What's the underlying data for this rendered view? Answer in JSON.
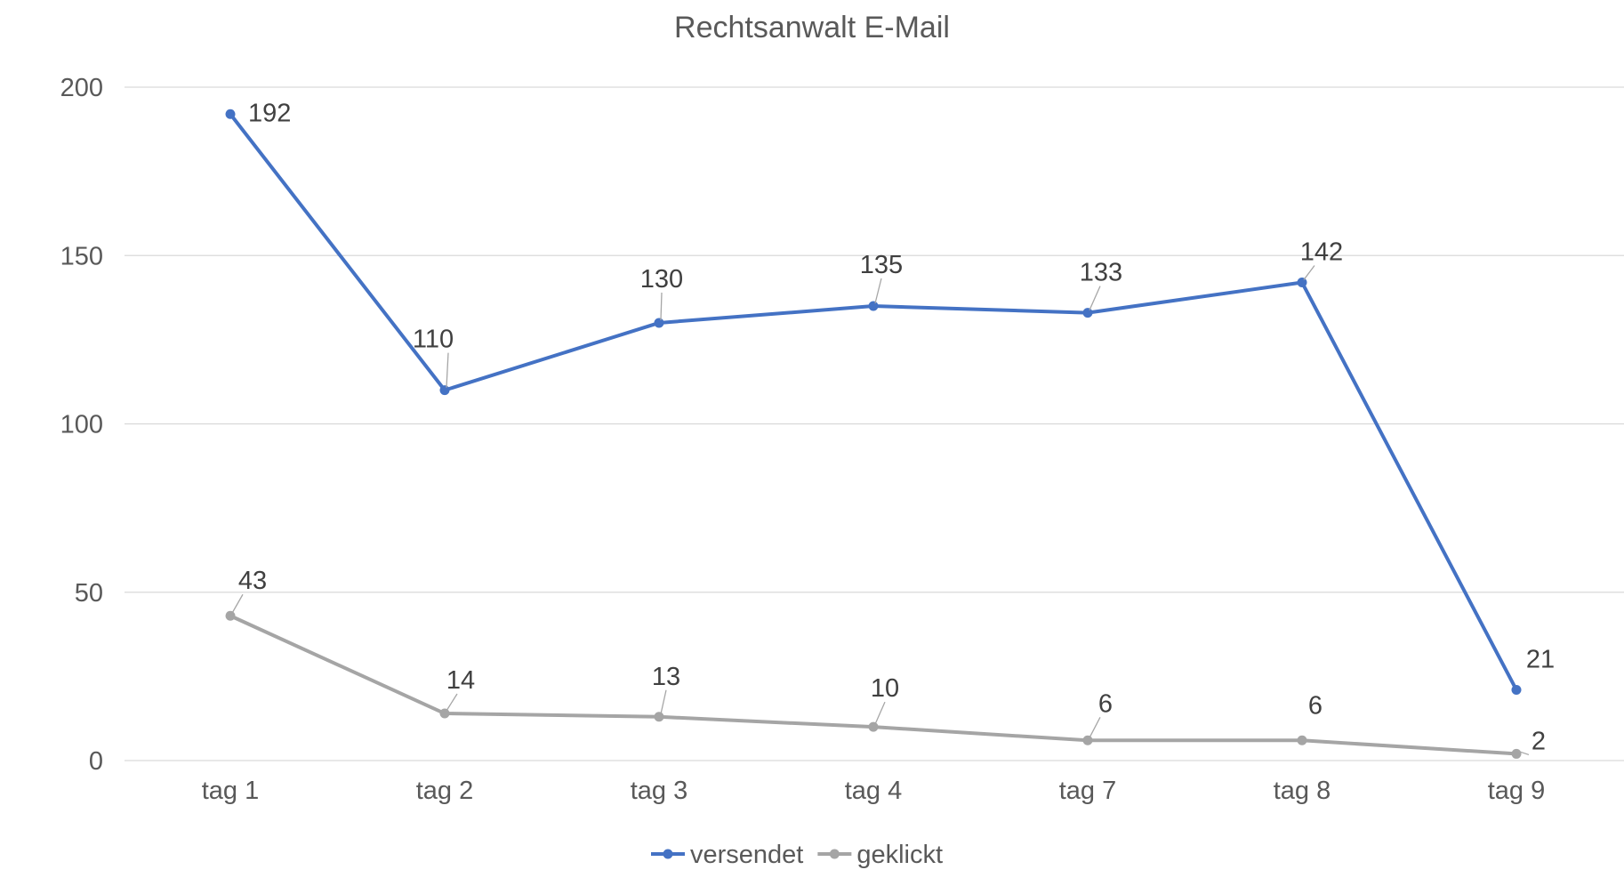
{
  "chart_data": {
    "type": "line",
    "title": "Rechtsanwalt E-Mail",
    "xlabel": "",
    "ylabel": "",
    "categories": [
      "tag 1",
      "tag 2",
      "tag 3",
      "tag 4",
      "tag 7",
      "tag 8",
      "tag 9"
    ],
    "ylim": [
      0,
      200
    ],
    "yticks": [
      0,
      50,
      100,
      150,
      200
    ],
    "grid": true,
    "legend_position": "bottom",
    "series": [
      {
        "name": "versendet",
        "color": "#4472c4",
        "values": [
          192,
          110,
          130,
          135,
          133,
          142,
          21
        ],
        "labels": [
          "192",
          "110",
          "130",
          "135",
          "133",
          "142",
          "21"
        ]
      },
      {
        "name": "geklickt",
        "color": "#a5a5a5",
        "values": [
          43,
          14,
          13,
          10,
          6,
          6,
          2
        ],
        "labels": [
          "43",
          "14",
          "13",
          "10",
          "6",
          "6",
          "2"
        ]
      }
    ]
  }
}
